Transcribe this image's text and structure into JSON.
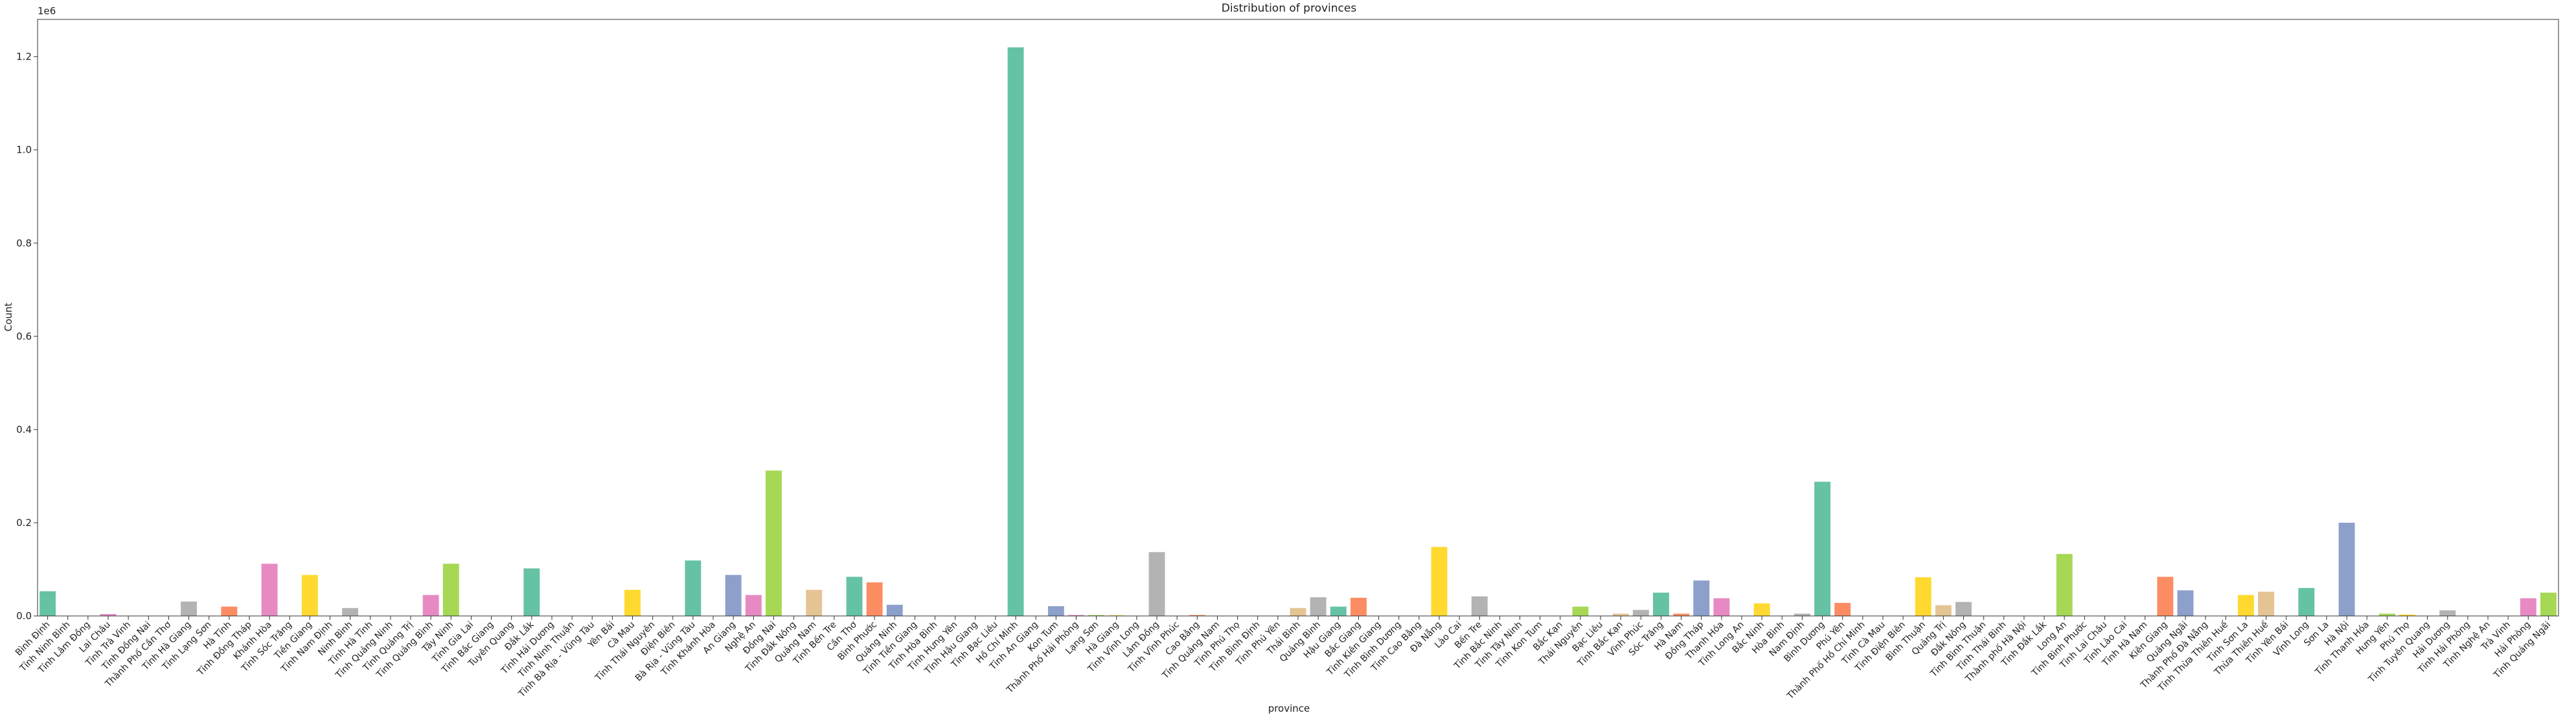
{
  "chart_data": {
    "type": "bar",
    "title": "Distribution of provinces",
    "x_label": "province",
    "y_label": "Count",
    "y_offset_label": "1e6",
    "palette": [
      "#66c2a5",
      "#fc8d62",
      "#8da0cb",
      "#e78ac3",
      "#a6d854",
      "#ffd92f",
      "#e5c494",
      "#b3b3b3"
    ],
    "categories": [
      "Bình Định",
      "Tỉnh Ninh Bình",
      "Tỉnh Lâm Đồng",
      "Lai Châu",
      "Tỉnh Trà Vinh",
      "Tỉnh Đồng Nai",
      "Thành Phố Cần Thơ",
      "Tỉnh Hà Giang",
      "Tỉnh Lạng Sơn",
      "Hà Tĩnh",
      "Tỉnh Đồng Tháp",
      "Khánh Hòa",
      "Tỉnh Sóc Trăng",
      "Tiền Giang",
      "Tỉnh Nam Định",
      "Ninh Bình",
      "Tỉnh Hà Tĩnh",
      "Tỉnh Quảng Ninh",
      "Tỉnh Quảng Trị",
      "Tỉnh Quảng Bình",
      "Tây Ninh",
      "Tỉnh Gia Lai",
      "Tỉnh Bắc Giang",
      "Tuyên Quang",
      "Đắk Lắk",
      "Tỉnh Hải Dương",
      "Tỉnh Ninh Thuận",
      "Tỉnh Bà Rịa - Vũng Tàu",
      "Yên Bái",
      "Cà Mau",
      "Tỉnh Thái Nguyên",
      "Điện Biên",
      "Bà Rịa - Vũng Tàu",
      "Tỉnh Khánh Hòa",
      "An Giang",
      "Nghệ An",
      "Đồng Nai",
      "Tỉnh Đắk Nông",
      "Quảng Nam",
      "Tỉnh Bến Tre",
      "Cần Thơ",
      "Bình Phước",
      "Quảng Ninh",
      "Tỉnh Tiền Giang",
      "Tỉnh Hòa Bình",
      "Tỉnh Hưng Yên",
      "Tỉnh Hậu Giang",
      "Tỉnh Bạc Liêu",
      "Hồ Chí Minh",
      "Tỉnh An Giang",
      "Kon Tum",
      "Thành Phố Hải Phòng",
      "Lạng Sơn",
      "Hà Giang",
      "Tỉnh Vĩnh Long",
      "Lâm Đồng",
      "Tỉnh Vĩnh Phúc",
      "Cao Bằng",
      "Tỉnh Quảng Nam",
      "Tỉnh Phú Thọ",
      "Tỉnh Bình Định",
      "Tỉnh Phú Yên",
      "Thái Bình",
      "Quảng Bình",
      "Hậu Giang",
      "Bắc Giang",
      "Tỉnh Kiên Giang",
      "Tỉnh Bình Dương",
      "Tỉnh Cao Bằng",
      "Đà Nẵng",
      "Lào Cai",
      "Bến Tre",
      "Tỉnh Bắc Ninh",
      "Tỉnh Tây Ninh",
      "Tỉnh Kon Tum",
      "Bắc Kạn",
      "Thái Nguyên",
      "Bạc Liêu",
      "Tỉnh Bắc Kạn",
      "Vĩnh Phúc",
      "Sóc Trăng",
      "Hà Nam",
      "Đồng Tháp",
      "Thanh Hóa",
      "Tỉnh Long An",
      "Bắc Ninh",
      "Hòa Bình",
      "Nam Định",
      "Bình Dương",
      "Phú Yên",
      "Thành Phố Hồ Chí Minh",
      "Tỉnh Cà Mau",
      "Tỉnh Điện Biên",
      "Bình Thuận",
      "Quảng Trị",
      "Đắk Nông",
      "Tỉnh Bình Thuận",
      "Tỉnh Thái Bình",
      "Thành phố Hà Nội",
      "Tỉnh Đắk Lắk",
      "Long An",
      "Tỉnh Bình Phước",
      "Tỉnh Lai Châu",
      "Tỉnh Lào Cai",
      "Tỉnh Hà Nam",
      "Kiên Giang",
      "Quảng Ngãi",
      "Thành Phố Đà Nẵng",
      "Tỉnh Thừa Thiên Huế",
      "Tỉnh Sơn La",
      "Thừa Thiên Huế",
      "Tỉnh Yên Bái",
      "Vĩnh Long",
      "Sơn La",
      "Hà Nội",
      "Tỉnh Thanh Hóa",
      "Hưng Yên",
      "Phú Thọ",
      "Tỉnh Tuyên Quang",
      "Hải Dương",
      "Tỉnh Hải Phòng",
      "Tỉnh Nghệ An",
      "Trà Vinh",
      "Hải Phòng",
      "Tỉnh Quảng Ngãi"
    ],
    "values": [
      53000,
      0,
      0,
      4000,
      0,
      0,
      0,
      31000,
      0,
      20000,
      0,
      112000,
      0,
      88000,
      0,
      17000,
      0,
      0,
      0,
      45000,
      112000,
      0,
      0,
      0,
      102000,
      0,
      0,
      0,
      0,
      56000,
      0,
      0,
      119000,
      0,
      88000,
      45000,
      312000,
      0,
      56000,
      0,
      84000,
      72000,
      24000,
      0,
      0,
      0,
      0,
      0,
      1220000,
      0,
      21000,
      2000,
      2000,
      1500,
      0,
      137000,
      0,
      2000,
      0,
      0,
      0,
      0,
      17000,
      40000,
      20000,
      39000,
      0,
      0,
      0,
      148000,
      0,
      42000,
      0,
      0,
      0,
      0,
      20000,
      0,
      5000,
      13000,
      50000,
      5000,
      76000,
      38000,
      0,
      27000,
      0,
      5000,
      288000,
      28000,
      0,
      0,
      0,
      83000,
      23000,
      30000,
      0,
      0,
      0,
      0,
      133000,
      0,
      0,
      0,
      0,
      84000,
      55000,
      0,
      0,
      45000,
      52000,
      0,
      60000,
      0,
      200000,
      0,
      5000,
      3000,
      0,
      12000,
      0,
      0,
      0,
      38000,
      50000
    ],
    "ylim": [
      0,
      1280000
    ],
    "yticks": [
      {
        "value": 0,
        "label": "0.0"
      },
      {
        "value": 200000,
        "label": "0.2"
      },
      {
        "value": 400000,
        "label": "0.4"
      },
      {
        "value": 600000,
        "label": "0.6"
      },
      {
        "value": 800000,
        "label": "0.8"
      },
      {
        "value": 1000000,
        "label": "1.0"
      },
      {
        "value": 1200000,
        "label": "1.2"
      }
    ]
  }
}
